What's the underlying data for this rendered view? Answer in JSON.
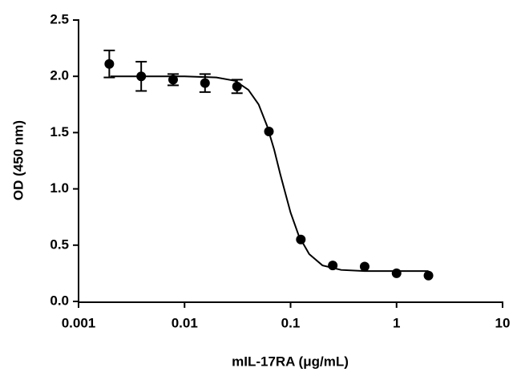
{
  "chart_data": {
    "type": "scatter",
    "x_label": "mIL-17RA (μg/mL)",
    "y_label": "OD (450 nm)",
    "x": [
      0.00195,
      0.0039,
      0.0078,
      0.0156,
      0.03125,
      0.0625,
      0.125,
      0.25,
      0.5,
      1,
      2
    ],
    "y": [
      2.11,
      2.0,
      1.97,
      1.94,
      1.91,
      1.51,
      0.55,
      0.32,
      0.31,
      0.25,
      0.23
    ],
    "errors": [
      0.12,
      0.13,
      0.05,
      0.08,
      0.06,
      null,
      null,
      null,
      null,
      null,
      null
    ],
    "fit_x": [
      0.002,
      0.005,
      0.01,
      0.02,
      0.03,
      0.04,
      0.05,
      0.06,
      0.07,
      0.08,
      0.09,
      0.1,
      0.12,
      0.15,
      0.2,
      0.3,
      0.5,
      1,
      2
    ],
    "fit_y": [
      2.0,
      2.0,
      2.0,
      1.99,
      1.96,
      1.88,
      1.75,
      1.56,
      1.35,
      1.13,
      0.95,
      0.79,
      0.58,
      0.42,
      0.32,
      0.28,
      0.27,
      0.27,
      0.27
    ],
    "color": "#000000",
    "xlog": true,
    "xlim": [
      0.001,
      10
    ],
    "xticks": [
      0.001,
      0.01,
      0.1,
      1,
      10
    ],
    "ylim": [
      0,
      2.5
    ],
    "yticks": [
      {
        "value": 0,
        "label": "0.0"
      },
      0.5,
      {
        "value": 1,
        "label": "1.0"
      },
      1.5,
      {
        "value": 2,
        "label": "2.0"
      },
      2.5
    ]
  }
}
